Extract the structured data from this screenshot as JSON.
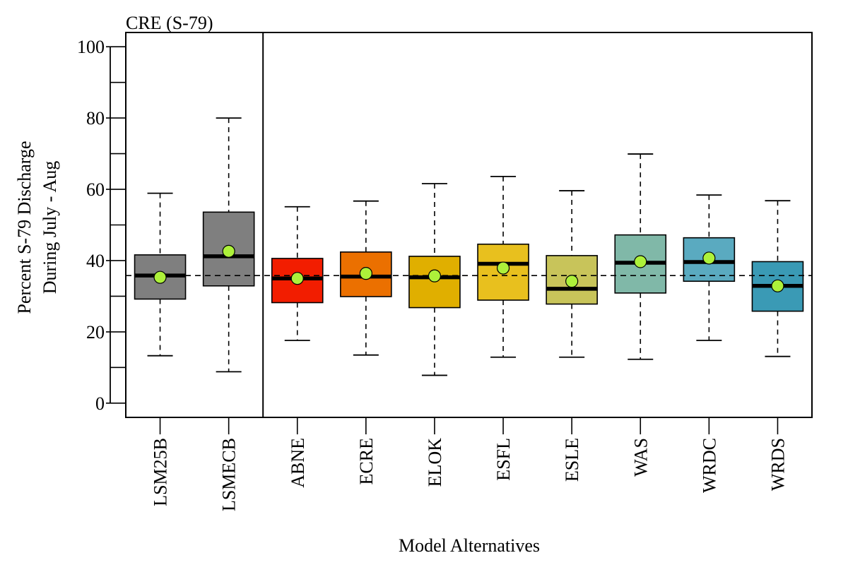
{
  "chart_data": {
    "type": "boxplot",
    "title": "CRE (S-79)",
    "xlabel": "Model Alternatives",
    "ylabel": [
      "Percent S-79 Discharge",
      "During July - Aug"
    ],
    "ylim": [
      -4,
      104
    ],
    "yticks": [
      0,
      20,
      40,
      60,
      80,
      100
    ],
    "reference_line": 35.8,
    "separator_after_index": 1,
    "mean_marker_color": "#adf13a",
    "categories": [
      "LSM25B",
      "LSMECB",
      "ABNE",
      "ECRE",
      "ELOK",
      "ESFL",
      "ESLE",
      "WAS",
      "WRDC",
      "WRDS"
    ],
    "colors": [
      "#7f7f7f",
      "#7f7f7f",
      "#f21d00",
      "#eb7000",
      "#e0af00",
      "#e8c01e",
      "#c8c45a",
      "#80b8a8",
      "#5aaac0",
      "#3a9ab5"
    ],
    "boxes": [
      {
        "min": 13.3,
        "q1": 29.2,
        "median": 35.8,
        "q3": 41.6,
        "max": 58.9,
        "mean": 35.3
      },
      {
        "min": 8.8,
        "q1": 32.9,
        "median": 41.2,
        "q3": 53.6,
        "max": 80.0,
        "mean": 42.6
      },
      {
        "min": 17.6,
        "q1": 28.2,
        "median": 35.0,
        "q3": 40.6,
        "max": 55.1,
        "mean": 35.0
      },
      {
        "min": 13.5,
        "q1": 29.9,
        "median": 35.5,
        "q3": 42.4,
        "max": 56.7,
        "mean": 36.4
      },
      {
        "min": 7.8,
        "q1": 26.8,
        "median": 35.3,
        "q3": 41.2,
        "max": 61.6,
        "mean": 35.7
      },
      {
        "min": 12.9,
        "q1": 28.9,
        "median": 39.1,
        "q3": 44.6,
        "max": 63.6,
        "mean": 37.9
      },
      {
        "min": 12.9,
        "q1": 27.8,
        "median": 32.1,
        "q3": 41.4,
        "max": 59.6,
        "mean": 34.2
      },
      {
        "min": 12.3,
        "q1": 30.9,
        "median": 39.4,
        "q3": 47.2,
        "max": 69.9,
        "mean": 39.7
      },
      {
        "min": 17.6,
        "q1": 34.2,
        "median": 39.6,
        "q3": 46.4,
        "max": 58.4,
        "mean": 40.7
      },
      {
        "min": 13.1,
        "q1": 25.8,
        "median": 32.9,
        "q3": 39.7,
        "max": 56.8,
        "mean": 32.9
      }
    ]
  }
}
